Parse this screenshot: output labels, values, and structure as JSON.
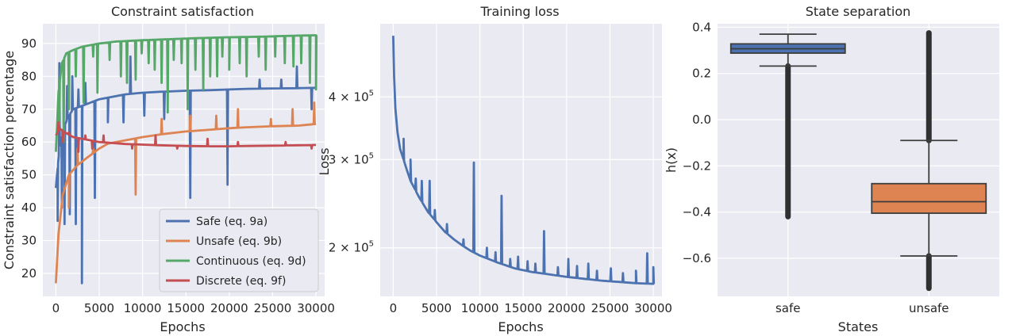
{
  "chart_data": [
    {
      "type": "line",
      "title": "Constraint satisfaction",
      "xlabel": "Epochs",
      "ylabel": "Constraint satisfaction percentage",
      "xlim": [
        -1500,
        31000
      ],
      "ylim": [
        13,
        96
      ],
      "xticks": [
        0,
        5000,
        10000,
        15000,
        20000,
        25000,
        30000
      ],
      "yticks": [
        20,
        30,
        40,
        50,
        60,
        70,
        80,
        90
      ],
      "grid": true,
      "legend_position": "lower-right",
      "series": [
        {
          "name": "Safe (eq. 9a)",
          "color": "#4c72b0",
          "x": [
            0,
            200,
            500,
            1000,
            1500,
            2000,
            3000,
            4000,
            5000,
            6000,
            8000,
            10000,
            12000,
            15000,
            18000,
            20000,
            22000,
            25000,
            28000,
            30000
          ],
          "y": [
            46,
            52,
            60,
            65,
            68,
            70,
            71,
            72,
            73,
            73.5,
            74.5,
            75,
            75.3,
            75.6,
            75.8,
            76,
            76.2,
            76.3,
            76.4,
            76.5
          ],
          "spikes": [
            [
              200,
              36
            ],
            [
              400,
              84
            ],
            [
              700,
              40
            ],
            [
              1000,
              35
            ],
            [
              1300,
              77
            ],
            [
              1600,
              38
            ],
            [
              1900,
              80
            ],
            [
              2300,
              35
            ],
            [
              2600,
              76
            ],
            [
              3000,
              17
            ],
            [
              3400,
              78
            ],
            [
              4500,
              43
            ],
            [
              6000,
              66
            ],
            [
              7800,
              66
            ],
            [
              8600,
              86
            ],
            [
              10200,
              68
            ],
            [
              12500,
              67
            ],
            [
              15500,
              43
            ],
            [
              19800,
              47
            ],
            [
              23500,
              79
            ],
            [
              26000,
              79
            ],
            [
              27800,
              83
            ],
            [
              29500,
              70
            ]
          ]
        },
        {
          "name": "Unsafe (eq. 9b)",
          "color": "#dd8452",
          "x": [
            0,
            300,
            800,
            1500,
            2500,
            3500,
            5000,
            6000,
            8000,
            10000,
            12000,
            15000,
            18000,
            20000,
            22000,
            25000,
            28000,
            30000
          ],
          "y": [
            17,
            32,
            44,
            50,
            53,
            55,
            58,
            59.5,
            60.5,
            61.5,
            62.3,
            63.2,
            63.8,
            64.2,
            64.5,
            64.8,
            65,
            65.5
          ],
          "spikes": [
            [
              800,
              44
            ],
            [
              1500,
              40
            ],
            [
              2500,
              58
            ],
            [
              4300,
              58
            ],
            [
              9200,
              44
            ],
            [
              12200,
              67
            ],
            [
              15500,
              68
            ],
            [
              18500,
              68
            ],
            [
              21000,
              70
            ],
            [
              24800,
              67
            ],
            [
              27300,
              70
            ],
            [
              29800,
              72
            ]
          ]
        },
        {
          "name": "Continuous (eq. 9d)",
          "color": "#55a868",
          "x": [
            0,
            300,
            700,
            1200,
            2000,
            3000,
            4000,
            5000,
            7000,
            10000,
            13000,
            16000,
            20000,
            24000,
            28000,
            30000
          ],
          "y": [
            57,
            75,
            84,
            87,
            88,
            89,
            89.5,
            90,
            90.6,
            91,
            91.3,
            91.6,
            91.9,
            92.1,
            92.4,
            92.5
          ],
          "spikes": [
            [
              400,
              65
            ],
            [
              900,
              60
            ],
            [
              1500,
              70
            ],
            [
              2300,
              80
            ],
            [
              3200,
              72
            ],
            [
              4300,
              86
            ],
            [
              4800,
              75
            ],
            [
              6200,
              85
            ],
            [
              7500,
              80
            ],
            [
              8200,
              78
            ],
            [
              9200,
              79
            ],
            [
              9900,
              87
            ],
            [
              10700,
              84
            ],
            [
              11400,
              82
            ],
            [
              12200,
              78
            ],
            [
              12900,
              69
            ],
            [
              13600,
              85
            ],
            [
              14500,
              84
            ],
            [
              15200,
              70
            ],
            [
              16100,
              82
            ],
            [
              17000,
              76
            ],
            [
              17800,
              80
            ],
            [
              18600,
              80
            ],
            [
              19200,
              86
            ],
            [
              20000,
              82
            ],
            [
              21200,
              84
            ],
            [
              22000,
              80
            ],
            [
              23400,
              86
            ],
            [
              24200,
              82
            ],
            [
              25300,
              86
            ],
            [
              26400,
              84
            ],
            [
              27400,
              83
            ],
            [
              28300,
              84
            ],
            [
              29300,
              78
            ],
            [
              30000,
              76
            ]
          ]
        },
        {
          "name": "Discrete (eq. 9f)",
          "color": "#c44e52",
          "x": [
            0,
            500,
            1000,
            2000,
            3000,
            4000,
            5000,
            6000,
            8000,
            10000,
            12000,
            15000,
            18000,
            20000,
            22000,
            25000,
            28000,
            30000
          ],
          "y": [
            62,
            64,
            63,
            61.5,
            61,
            60.5,
            60,
            59.8,
            59.4,
            59.2,
            59,
            58.8,
            58.7,
            58.7,
            58.8,
            58.9,
            59,
            59.1
          ],
          "spikes": [
            [
              300,
              66
            ],
            [
              800,
              60
            ],
            [
              1500,
              63
            ],
            [
              2600,
              57
            ],
            [
              3400,
              62
            ],
            [
              4200,
              58
            ],
            [
              5500,
              62
            ],
            [
              8800,
              58
            ],
            [
              11500,
              62
            ],
            [
              14000,
              58
            ],
            [
              17500,
              61
            ],
            [
              21000,
              60
            ],
            [
              26500,
              60
            ],
            [
              29500,
              58
            ]
          ]
        }
      ]
    },
    {
      "type": "line",
      "title": "Training loss",
      "xlabel": "Epochs",
      "ylabel": "Loss",
      "xscale": "linear",
      "yscale": "log",
      "xlim": [
        -1500,
        31000
      ],
      "ylim": [
        160000,
        560000
      ],
      "xticks": [
        0,
        5000,
        10000,
        15000,
        20000,
        25000,
        30000
      ],
      "yticks": [
        {
          "value": 200000,
          "mantissa": "2",
          "base": "10",
          "exp": "5"
        },
        {
          "value": 300000,
          "mantissa": "3",
          "base": "10",
          "exp": "5"
        },
        {
          "value": 400000,
          "mantissa": "4",
          "base": "10",
          "exp": "5"
        }
      ],
      "grid": true,
      "series": [
        {
          "name": "",
          "color": "#4c72b0",
          "x": [
            0,
            100,
            250,
            500,
            800,
            1200,
            1600,
            2000,
            2500,
            3000,
            3500,
            4000,
            5000,
            6000,
            7000,
            8000,
            9000,
            10000,
            12000,
            14000,
            16000,
            18000,
            20000,
            22000,
            24000,
            26000,
            28000,
            30000
          ],
          "y": [
            530000,
            440000,
            380000,
            340000,
            315000,
            300000,
            285000,
            272000,
            262000,
            252000,
            244000,
            236000,
            225000,
            215000,
            208000,
            202000,
            197000,
            193000,
            187000,
            182000,
            179000,
            177000,
            175000,
            173500,
            172000,
            171000,
            170000,
            169500
          ],
          "spikes": [
            [
              1200,
              330000
            ],
            [
              2000,
              300000
            ],
            [
              2600,
              275000
            ],
            [
              3300,
              272000
            ],
            [
              4200,
              272000
            ],
            [
              4800,
              238000
            ],
            [
              6200,
              223000
            ],
            [
              8100,
              208000
            ],
            [
              9300,
              296000
            ],
            [
              10800,
              200000
            ],
            [
              11800,
              196000
            ],
            [
              12500,
              254000
            ],
            [
              13500,
              190000
            ],
            [
              14400,
              192000
            ],
            [
              15500,
              188000
            ],
            [
              16400,
              186000
            ],
            [
              17400,
              216000
            ],
            [
              19000,
              183000
            ],
            [
              20200,
              190000
            ],
            [
              21200,
              184000
            ],
            [
              22500,
              186000
            ],
            [
              23500,
              180000
            ],
            [
              25100,
              182000
            ],
            [
              26500,
              178000
            ],
            [
              28000,
              180000
            ],
            [
              29300,
              195000
            ],
            [
              30000,
              183000
            ]
          ]
        }
      ]
    },
    {
      "type": "box",
      "title": "State separation",
      "xlabel": "States",
      "ylabel": "h(x)",
      "ylim": [
        -0.765,
        0.415
      ],
      "yticks": [
        0.4,
        0.2,
        0.0,
        -0.2,
        -0.4,
        -0.6
      ],
      "ytick_labels": [
        "0.4",
        "0.2",
        "0.0",
        "−0.2",
        "−0.4",
        "−0.6"
      ],
      "categories": [
        "safe",
        "unsafe"
      ],
      "grid": true,
      "boxes": [
        {
          "name": "safe",
          "color": "#4c72b0",
          "q1": 0.288,
          "median": 0.307,
          "q3": 0.328,
          "whisker_low": 0.232,
          "whisker_high": 0.37,
          "outliers_low": -0.42,
          "outliers_high": null
        },
        {
          "name": "unsafe",
          "color": "#dd8452",
          "q1": -0.405,
          "median": -0.355,
          "q3": -0.277,
          "whisker_low": -0.59,
          "whisker_high": -0.09,
          "outliers_low": -0.73,
          "outliers_high": 0.375
        }
      ]
    }
  ]
}
